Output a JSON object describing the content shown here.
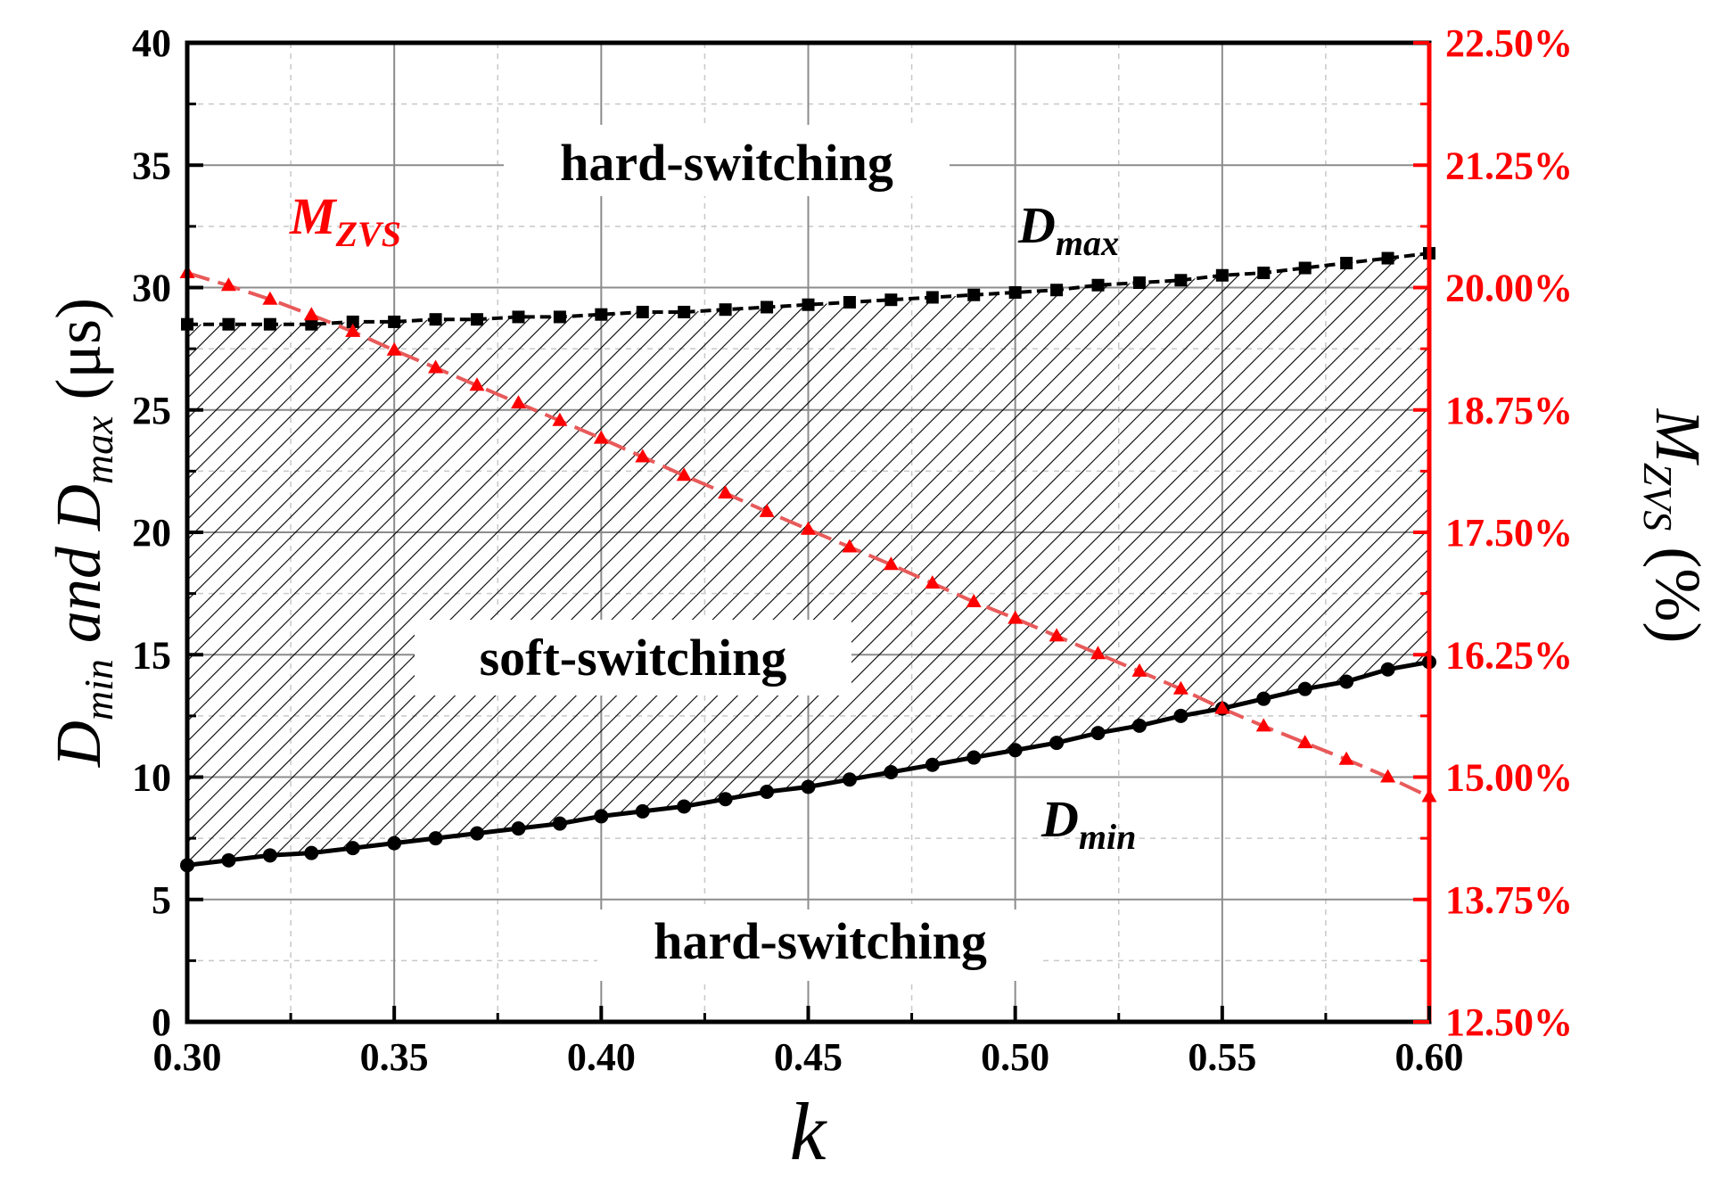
{
  "chart_data": {
    "type": "line",
    "xlabel": "k",
    "ylabel_left": {
      "d1": "D",
      "s1": "min",
      "mid": "and",
      "d2": "D",
      "s2": "max",
      "unit": "(μs)"
    },
    "ylabel_right": {
      "m": "M",
      "s": "ZVS",
      "unit": "(%)"
    },
    "xlim": [
      0.3,
      0.6
    ],
    "ylim_left": [
      0,
      40
    ],
    "ylim_right": [
      12.5,
      22.5
    ],
    "x_ticks": [
      "0.30",
      "0.35",
      "0.40",
      "0.45",
      "0.50",
      "0.55",
      "0.60"
    ],
    "y_ticks_left": [
      "0",
      "5",
      "10",
      "15",
      "20",
      "25",
      "30",
      "35",
      "40"
    ],
    "y_ticks_right": [
      "12.50%",
      "13.75%",
      "15.00%",
      "16.25%",
      "17.50%",
      "18.75%",
      "20.00%",
      "21.25%",
      "22.50%"
    ],
    "grid": true,
    "colors": {
      "left_axis": "#000000",
      "right_axis": "#ff0000",
      "mzvs_line": "#e85a5a",
      "mzvs_marker": "#ff0000"
    },
    "x": [
      0.3,
      0.31,
      0.32,
      0.33,
      0.34,
      0.35,
      0.36,
      0.37,
      0.38,
      0.39,
      0.4,
      0.41,
      0.42,
      0.43,
      0.44,
      0.45,
      0.46,
      0.47,
      0.48,
      0.49,
      0.5,
      0.51,
      0.52,
      0.53,
      0.54,
      0.55,
      0.56,
      0.57,
      0.58,
      0.59,
      0.6
    ],
    "series": [
      {
        "key": "dmax",
        "axis": "left",
        "marker": "square",
        "values": [
          28.5,
          28.5,
          28.5,
          28.5,
          28.6,
          28.6,
          28.7,
          28.7,
          28.8,
          28.8,
          28.9,
          29.0,
          29.0,
          29.1,
          29.2,
          29.3,
          29.4,
          29.5,
          29.6,
          29.7,
          29.8,
          29.9,
          30.1,
          30.2,
          30.3,
          30.5,
          30.6,
          30.8,
          31.0,
          31.2,
          31.4
        ]
      },
      {
        "key": "dmin",
        "axis": "left",
        "marker": "circle",
        "values": [
          6.4,
          6.6,
          6.8,
          6.9,
          7.1,
          7.3,
          7.5,
          7.7,
          7.9,
          8.1,
          8.4,
          8.6,
          8.8,
          9.1,
          9.4,
          9.6,
          9.9,
          10.2,
          10.5,
          10.8,
          11.1,
          11.4,
          11.8,
          12.1,
          12.5,
          12.8,
          13.2,
          13.6,
          13.9,
          14.4,
          14.7
        ]
      },
      {
        "key": "mzvs",
        "axis": "right",
        "marker": "triangle",
        "values": [
          20.15,
          20.02,
          19.88,
          19.72,
          19.55,
          19.36,
          19.18,
          19.0,
          18.82,
          18.64,
          18.46,
          18.27,
          18.08,
          17.9,
          17.71,
          17.53,
          17.35,
          17.17,
          16.98,
          16.79,
          16.62,
          16.44,
          16.26,
          16.08,
          15.9,
          15.7,
          15.52,
          15.35,
          15.18,
          15.0,
          14.8
        ]
      }
    ],
    "annotations": {
      "hard_top": "hard-switching",
      "soft": "soft-switching",
      "hard_bottom": "hard-switching",
      "dmax": {
        "main": "D",
        "sub": "max"
      },
      "dmin": {
        "main": "D",
        "sub": "min"
      },
      "mzvs": {
        "main": "M",
        "sub": "ZVS"
      }
    }
  }
}
